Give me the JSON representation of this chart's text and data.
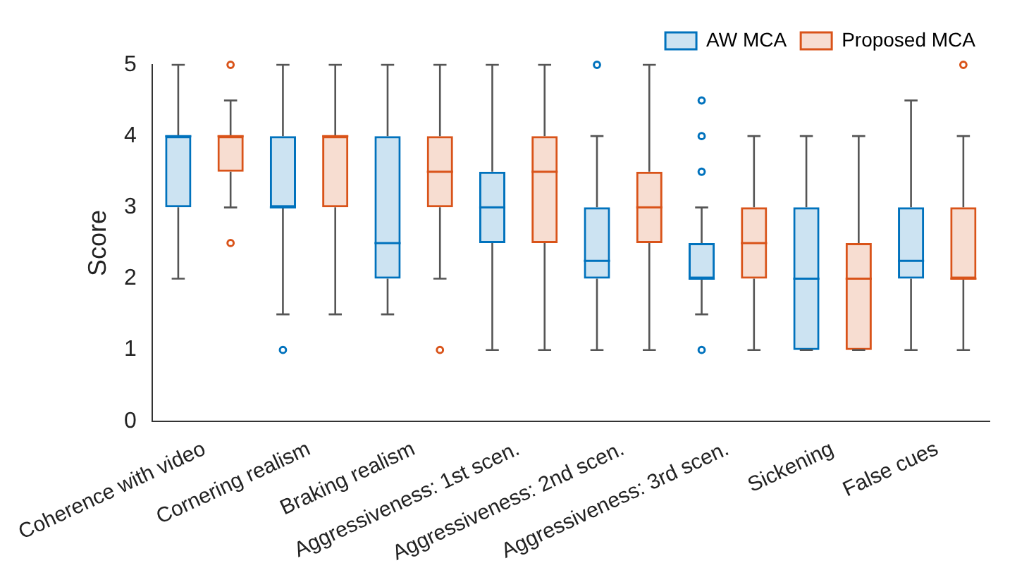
{
  "chart_data": {
    "type": "box",
    "ylabel": "Score",
    "categories": [
      "Coherence with video",
      "Cornering realism",
      "Braking realism",
      "Aggressiveness: 1st scen.",
      "Aggressiveness: 2nd scen.",
      "Aggressiveness: 3rd scen.",
      "Sickening",
      "False cues"
    ],
    "ylim": [
      0,
      5
    ],
    "yticks": [
      0,
      1,
      2,
      3,
      4,
      5
    ],
    "grid": false,
    "legend": "top right",
    "series": [
      {
        "name": "AW MCA",
        "color": "#0072bd",
        "boxes": [
          {
            "low": 2,
            "q1": 3,
            "median": 4,
            "q3": 4,
            "high": 5
          },
          {
            "low": 1.5,
            "q1": 3,
            "median": 3,
            "q3": 4,
            "high": 5,
            "outliers": [
              1
            ]
          },
          {
            "low": 1.5,
            "q1": 2,
            "median": 2.5,
            "q3": 4,
            "high": 5
          },
          {
            "low": 1,
            "q1": 2.5,
            "median": 3,
            "q3": 3.5,
            "high": 5
          },
          {
            "low": 1,
            "q1": 2,
            "median": 2.25,
            "q3": 3,
            "high": 4,
            "outliers": [
              5
            ]
          },
          {
            "low": 1.5,
            "q1": 2,
            "median": 2,
            "q3": 2.5,
            "high": 3,
            "outliers": [
              1,
              3.5,
              4,
              4.5
            ]
          },
          {
            "low": 1,
            "q1": 1,
            "median": 2,
            "q3": 3,
            "high": 4
          },
          {
            "low": 1,
            "q1": 2,
            "median": 2.25,
            "q3": 3,
            "high": 4.5
          }
        ]
      },
      {
        "name": "Proposed MCA",
        "color": "#d95319",
        "boxes": [
          {
            "low": 3,
            "q1": 3.5,
            "median": 4,
            "q3": 4,
            "high": 4.5,
            "outliers": [
              2.5,
              5
            ]
          },
          {
            "low": 1.5,
            "q1": 3,
            "median": 4,
            "q3": 4,
            "high": 5
          },
          {
            "low": 2,
            "q1": 3,
            "median": 3.5,
            "q3": 4,
            "high": 5,
            "outliers": [
              1
            ]
          },
          {
            "low": 1,
            "q1": 2.5,
            "median": 3.5,
            "q3": 4,
            "high": 5
          },
          {
            "low": 1,
            "q1": 2.5,
            "median": 3,
            "q3": 3.5,
            "high": 5
          },
          {
            "low": 1,
            "q1": 2,
            "median": 2.5,
            "q3": 3,
            "high": 4
          },
          {
            "low": 1,
            "q1": 1,
            "median": 2,
            "q3": 2.5,
            "high": 4
          },
          {
            "low": 1,
            "q1": 2,
            "median": 2,
            "q3": 3,
            "high": 4,
            "outliers": [
              5
            ]
          }
        ]
      }
    ]
  }
}
